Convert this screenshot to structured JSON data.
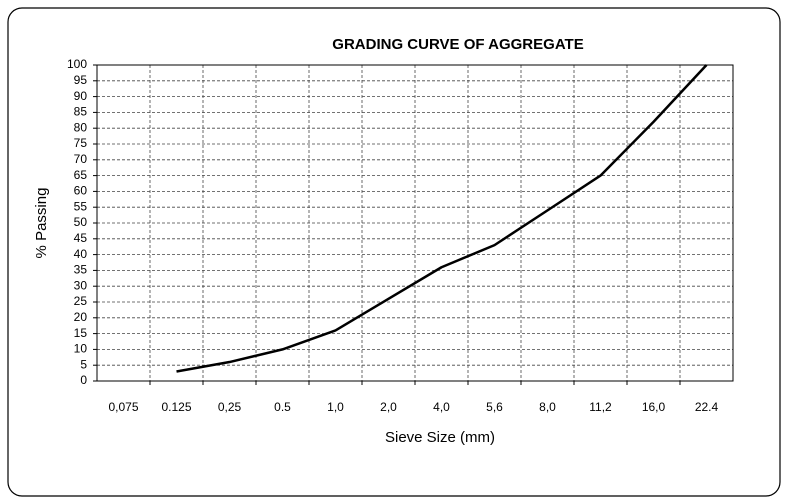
{
  "chart_data": {
    "type": "line",
    "title": "GRADING CURVE OF AGGREGATE",
    "x_label": "Sieve Size (mm)",
    "y_label": "% Passing",
    "categories": [
      "0,075",
      "0.125",
      "0,25",
      "0.5",
      "1,0",
      "2,0",
      "4,0",
      "5,6",
      "8,0",
      "11,2",
      "16,0",
      "22.4"
    ],
    "series": [
      {
        "name": "Passing",
        "color": "#000000",
        "values": [
          null,
          3,
          6,
          10,
          16,
          26,
          36,
          43,
          54,
          65,
          82,
          100
        ]
      }
    ],
    "ylim": [
      0,
      100
    ],
    "yticks": [
      0,
      5,
      10,
      15,
      20,
      25,
      30,
      35,
      40,
      45,
      50,
      55,
      60,
      65,
      70,
      75,
      80,
      85,
      90,
      95,
      100
    ],
    "grid": true
  }
}
